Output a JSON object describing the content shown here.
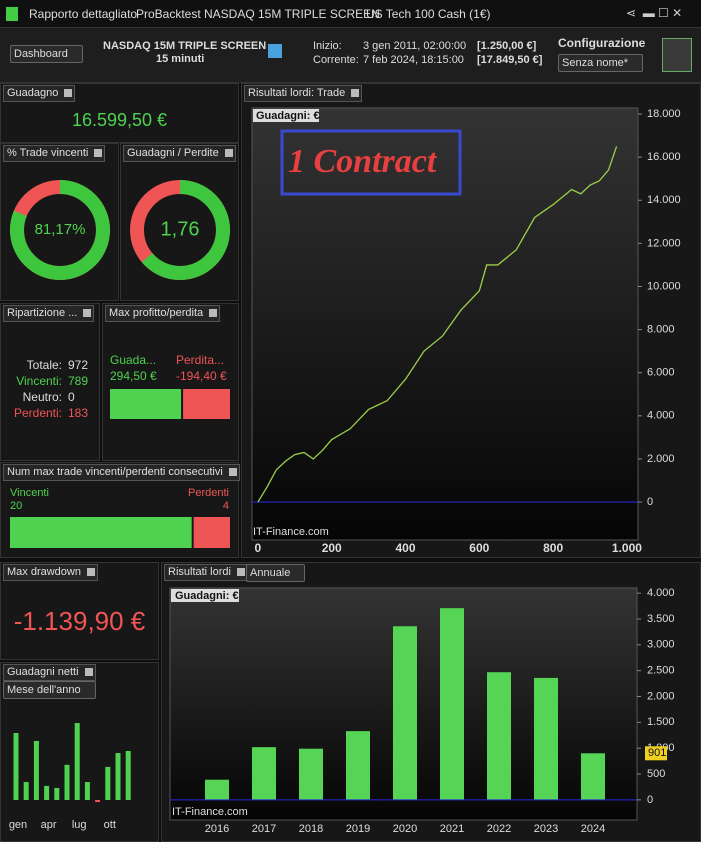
{
  "tabs": [
    "Rapporto dettagliato",
    "ProBacktest",
    "NASDAQ 15M  TRIPLE SCREEN",
    "US Tech 100 Cash (1€)"
  ],
  "header": {
    "dashboard": "Dashboard",
    "strategy": "NASDAQ 15M  TRIPLE SCREEN",
    "timeframe": "15 minuti",
    "start_label": "Inizio:",
    "start_date": "3 gen 2011, 02:00:00",
    "start_value": "[1.250,00 €]",
    "current_label": "Corrente:",
    "current_date": "7 feb 2024, 18:15:00",
    "current_value": "[17.849,50 €]",
    "config_label": "Configurazione",
    "config_value": "Senza nome*"
  },
  "gain": {
    "title": "Guadagno",
    "value": "16.599,50 €"
  },
  "win_pct": {
    "title": "% Trade vincenti",
    "value": 81.17,
    "value_label": "81,17%"
  },
  "ratio": {
    "title": "Guadagni / Perdite",
    "value": 1.76,
    "value_label": "1,76"
  },
  "breakdown": {
    "title": "Ripartizione ...",
    "labels": [
      "Totale:",
      "Vincenti:",
      "Neutro:",
      "Perdenti:"
    ],
    "values": [
      972,
      789,
      0,
      183
    ]
  },
  "max_profit": {
    "title": "Max profitto/perdita",
    "names": [
      "Guada...",
      "Perdita..."
    ],
    "values": [
      294.5,
      -194.4
    ],
    "value_labels": [
      "294,50 €",
      "-194,40 €"
    ],
    "colors": [
      "#4fd24f",
      "#f05555"
    ]
  },
  "consecutive": {
    "title": "Num max trade vincenti/perdenti consecutivi",
    "names": [
      "Vincenti",
      "Perdenti"
    ],
    "values": [
      20,
      4
    ],
    "colors": [
      "#4fd24f",
      "#f05555"
    ]
  },
  "drawdown": {
    "title": "Max drawdown",
    "value": "-1.139,90 €"
  },
  "equity_chart": {
    "type": "line",
    "title": "Risultati lordi: Trade",
    "label": "Guadagni: €",
    "annotation": "1 Contract",
    "watermark": "IT-Finance.com",
    "color": "#9ccf4a",
    "x": [
      0,
      25,
      50,
      75,
      100,
      125,
      150,
      175,
      200,
      250,
      300,
      350,
      400,
      450,
      500,
      550,
      600,
      620,
      650,
      700,
      750,
      800,
      850,
      875,
      900,
      925,
      950,
      972
    ],
    "values": [
      0,
      700,
      1500,
      1900,
      2200,
      2300,
      2000,
      2400,
      2900,
      3400,
      4300,
      4700,
      5700,
      7000,
      7700,
      8900,
      9800,
      11000,
      11000,
      11700,
      13200,
      13800,
      14500,
      14300,
      14700,
      14900,
      15400,
      16500
    ],
    "xlim": [
      -16,
      1030
    ],
    "xticks": [
      0,
      200,
      400,
      600,
      800,
      {
        "value": 1000,
        "label": "1.000"
      }
    ],
    "ylim": [
      -1760,
      18280
    ],
    "yticks": [
      0,
      {
        "value": 2000,
        "label": "2.000"
      },
      {
        "value": 4000,
        "label": "4.000"
      },
      {
        "value": 6000,
        "label": "6.000"
      },
      {
        "value": 8000,
        "label": "8.000"
      },
      {
        "value": 10000,
        "label": "10.000"
      },
      {
        "value": 12000,
        "label": "12.000"
      },
      {
        "value": 14000,
        "label": "14.000"
      },
      {
        "value": 16000,
        "label": "16.000"
      },
      {
        "value": 18000,
        "label": "18.000"
      }
    ]
  },
  "annual_chart": {
    "type": "bar",
    "title": "Risultati lordi",
    "period": "Annuale",
    "label": "Guadagni: €",
    "watermark": "IT-Finance.com",
    "color": "#55d455",
    "categories": [
      "2016",
      "2017",
      "2018",
      "2019",
      "2020",
      "2021",
      "2022",
      "2023",
      "2024"
    ],
    "values": [
      390,
      1020,
      990,
      1330,
      3360,
      3710,
      2470,
      2360,
      901
    ],
    "ylim": [
      -390,
      4100
    ],
    "yticks": [
      0,
      500,
      {
        "value": 1000,
        "label": "1.000"
      },
      {
        "value": 1500,
        "label": "1.500"
      },
      {
        "value": 2000,
        "label": "2.000"
      },
      {
        "value": 2500,
        "label": "2.500"
      },
      {
        "value": 3000,
        "label": "3.000"
      },
      {
        "value": 3500,
        "label": "3.500"
      },
      {
        "value": 4000,
        "label": "4.000"
      }
    ]
  },
  "monthly_chart": {
    "type": "bar",
    "title": "Guadagni netti",
    "period": "Mese dell'anno",
    "color": "#4fd24f",
    "neg_color": "#f05555",
    "categories": [
      "gen",
      null,
      null,
      "apr",
      null,
      null,
      "lug",
      null,
      null,
      "ott",
      null,
      null
    ],
    "values": [
      2610,
      700,
      2300,
      550,
      470,
      1370,
      3000,
      700,
      -80,
      1290,
      1830,
      1910
    ]
  }
}
